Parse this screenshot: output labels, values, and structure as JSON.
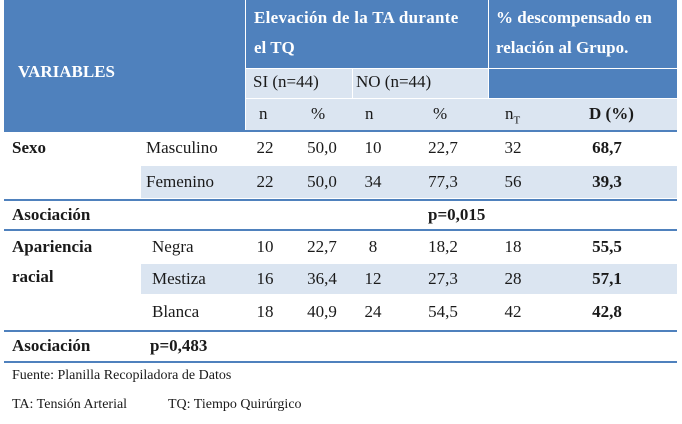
{
  "header": {
    "variables": "VARIABLES",
    "elev_line1": "Elevación de la TA durante",
    "elev_line2": "el TQ",
    "desc_line1": "% descompensado en",
    "desc_line2": "relación al Grupo.",
    "si": "SI (n=44)",
    "no": "NO  (n=44)",
    "n": "n",
    "pct": "%",
    "nT_base": "n",
    "nT_sub": "T",
    "d": "D (%)"
  },
  "sexo": {
    "label": "Sexo",
    "rows": [
      {
        "cat": "Masculino",
        "si_n": "22",
        "si_p": "50,0",
        "no_n": "10",
        "no_p": "22,7",
        "nT": "32",
        "d": "68,7"
      },
      {
        "cat": "Femenino",
        "si_n": "22",
        "si_p": "50,0",
        "no_n": "34",
        "no_p": "77,3",
        "nT": "56",
        "d": "39,3"
      }
    ],
    "assoc_label": "Asociación",
    "assoc_value": "p=0,015"
  },
  "raza": {
    "label_line1": "Apariencia",
    "label_line2": "racial",
    "rows": [
      {
        "cat": "Negra",
        "si_n": "10",
        "si_p": "22,7",
        "no_n": "8",
        "no_p": "18,2",
        "nT": "18",
        "d": "55,5"
      },
      {
        "cat": "Mestiza",
        "si_n": "16",
        "si_p": "36,4",
        "no_n": "12",
        "no_p": "27,3",
        "nT": "28",
        "d": "57,1"
      },
      {
        "cat": "Blanca",
        "si_n": "18",
        "si_p": "40,9",
        "no_n": "24",
        "no_p": "54,5",
        "nT": "42",
        "d": "42,8"
      }
    ],
    "assoc_label": "Asociación",
    "assoc_value": "p=0,483"
  },
  "notes": {
    "fuente": "Fuente: Planilla Recopiladora de Datos",
    "ta": "TA: Tensión Arterial",
    "tq": "TQ: Tiempo Quirúrgico"
  },
  "colors": {
    "header_bg": "#4f81bd",
    "band_bg": "#dbe5f1"
  }
}
